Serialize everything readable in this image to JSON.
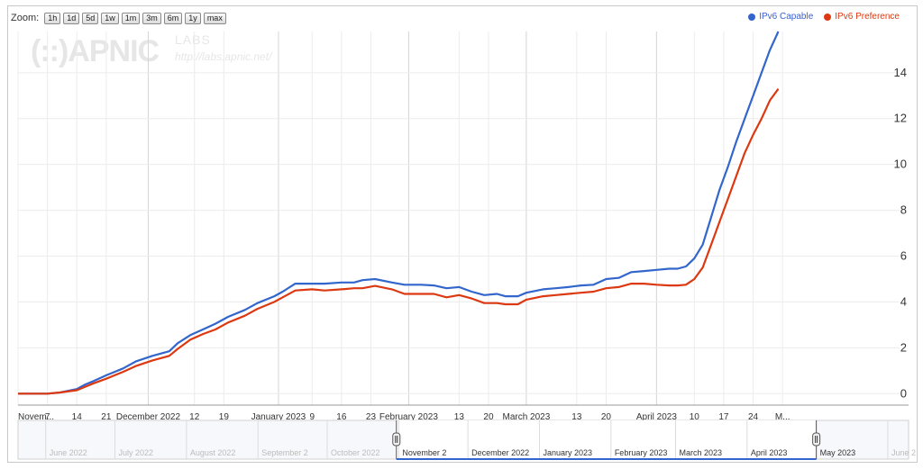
{
  "zoom": {
    "label": "Zoom:",
    "buttons": [
      "1h",
      "1d",
      "5d",
      "1w",
      "1m",
      "3m",
      "6m",
      "1y",
      "max"
    ]
  },
  "watermark": {
    "logo": "(::)APNIC",
    "labs": "LABS",
    "url": "http://labs.apnic.net/"
  },
  "colors": {
    "capable": "#3366cc",
    "preference": "#dc3912",
    "grid": "#ececec",
    "axis_text": "#333333"
  },
  "chart_data": {
    "type": "line",
    "title": "",
    "xlabel": "",
    "ylabel": "",
    "ylim": [
      -0.5,
      15.8
    ],
    "yticks": [
      0,
      2,
      4,
      6,
      8,
      10,
      12,
      14
    ],
    "ytick_labels": [
      "0",
      "2",
      "4",
      "6",
      "8",
      "10",
      "12",
      "14"
    ],
    "xlim": [
      "2022-10-31",
      "2023-05-31"
    ],
    "xticks": [
      {
        "date": "2022-10-31",
        "label": "Novem..."
      },
      {
        "date": "2022-11-07",
        "label": "7"
      },
      {
        "date": "2022-11-14",
        "label": "14"
      },
      {
        "date": "2022-11-21",
        "label": "21"
      },
      {
        "date": "2022-12-01",
        "label": "December 2022"
      },
      {
        "date": "2022-12-12",
        "label": "12"
      },
      {
        "date": "2022-12-19",
        "label": "19"
      },
      {
        "date": "2023-01-01",
        "label": "January 2023"
      },
      {
        "date": "2023-01-09",
        "label": "9"
      },
      {
        "date": "2023-01-16",
        "label": "16"
      },
      {
        "date": "2023-01-23",
        "label": "23"
      },
      {
        "date": "2023-02-01",
        "label": "February 2023"
      },
      {
        "date": "2023-02-13",
        "label": "13"
      },
      {
        "date": "2023-02-20",
        "label": "20"
      },
      {
        "date": "2023-03-01",
        "label": "March 2023"
      },
      {
        "date": "2023-03-13",
        "label": "13"
      },
      {
        "date": "2023-03-20",
        "label": "20"
      },
      {
        "date": "2023-04-01",
        "label": "April 2023"
      },
      {
        "date": "2023-04-10",
        "label": "10"
      },
      {
        "date": "2023-04-17",
        "label": "17"
      },
      {
        "date": "2023-04-24",
        "label": "24"
      },
      {
        "date": "2023-05-01",
        "label": "M..."
      }
    ],
    "legend_position": "top-right",
    "grid": true,
    "series": [
      {
        "name": "IPv6 Capable",
        "color": "#3366cc",
        "points": [
          [
            "2022-10-31",
            0
          ],
          [
            "2022-11-07",
            0
          ],
          [
            "2022-11-10",
            0.05
          ],
          [
            "2022-11-14",
            0.2
          ],
          [
            "2022-11-16",
            0.4
          ],
          [
            "2022-11-18",
            0.55
          ],
          [
            "2022-11-21",
            0.8
          ],
          [
            "2022-11-25",
            1.1
          ],
          [
            "2022-11-28",
            1.4
          ],
          [
            "2022-12-02",
            1.65
          ],
          [
            "2022-12-06",
            1.85
          ],
          [
            "2022-12-08",
            2.2
          ],
          [
            "2022-12-11",
            2.55
          ],
          [
            "2022-12-14",
            2.8
          ],
          [
            "2022-12-17",
            3.05
          ],
          [
            "2022-12-20",
            3.35
          ],
          [
            "2022-12-24",
            3.65
          ],
          [
            "2022-12-27",
            3.95
          ],
          [
            "2022-12-31",
            4.25
          ],
          [
            "2023-01-02",
            4.45
          ],
          [
            "2023-01-05",
            4.8
          ],
          [
            "2023-01-09",
            4.8
          ],
          [
            "2023-01-12",
            4.8
          ],
          [
            "2023-01-16",
            4.85
          ],
          [
            "2023-01-19",
            4.85
          ],
          [
            "2023-01-21",
            4.95
          ],
          [
            "2023-01-24",
            5.0
          ],
          [
            "2023-01-28",
            4.85
          ],
          [
            "2023-01-31",
            4.75
          ],
          [
            "2023-02-04",
            4.75
          ],
          [
            "2023-02-07",
            4.72
          ],
          [
            "2023-02-10",
            4.6
          ],
          [
            "2023-02-13",
            4.65
          ],
          [
            "2023-02-16",
            4.45
          ],
          [
            "2023-02-19",
            4.3
          ],
          [
            "2023-02-22",
            4.35
          ],
          [
            "2023-02-24",
            4.25
          ],
          [
            "2023-02-27",
            4.25
          ],
          [
            "2023-03-01",
            4.4
          ],
          [
            "2023-03-05",
            4.55
          ],
          [
            "2023-03-08",
            4.6
          ],
          [
            "2023-03-11",
            4.65
          ],
          [
            "2023-03-14",
            4.72
          ],
          [
            "2023-03-17",
            4.75
          ],
          [
            "2023-03-20",
            5.0
          ],
          [
            "2023-03-23",
            5.05
          ],
          [
            "2023-03-26",
            5.3
          ],
          [
            "2023-03-29",
            5.35
          ],
          [
            "2023-04-01",
            5.4
          ],
          [
            "2023-04-04",
            5.45
          ],
          [
            "2023-04-06",
            5.45
          ],
          [
            "2023-04-08",
            5.55
          ],
          [
            "2023-04-10",
            5.9
          ],
          [
            "2023-04-12",
            6.5
          ],
          [
            "2023-04-14",
            7.7
          ],
          [
            "2023-04-16",
            8.9
          ],
          [
            "2023-04-18",
            9.9
          ],
          [
            "2023-04-20",
            11.0
          ],
          [
            "2023-04-22",
            12.0
          ],
          [
            "2023-04-24",
            13.0
          ],
          [
            "2023-04-26",
            14.0
          ],
          [
            "2023-04-28",
            15.0
          ],
          [
            "2023-04-30",
            15.8
          ]
        ]
      },
      {
        "name": "IPv6 Preference",
        "color": "#dc3912",
        "points": [
          [
            "2022-10-31",
            0
          ],
          [
            "2022-11-07",
            0
          ],
          [
            "2022-11-10",
            0.05
          ],
          [
            "2022-11-14",
            0.15
          ],
          [
            "2022-11-16",
            0.3
          ],
          [
            "2022-11-18",
            0.45
          ],
          [
            "2022-11-21",
            0.65
          ],
          [
            "2022-11-25",
            0.95
          ],
          [
            "2022-11-28",
            1.2
          ],
          [
            "2022-12-02",
            1.45
          ],
          [
            "2022-12-06",
            1.65
          ],
          [
            "2022-12-08",
            1.95
          ],
          [
            "2022-12-11",
            2.35
          ],
          [
            "2022-12-14",
            2.6
          ],
          [
            "2022-12-17",
            2.8
          ],
          [
            "2022-12-20",
            3.1
          ],
          [
            "2022-12-24",
            3.4
          ],
          [
            "2022-12-27",
            3.7
          ],
          [
            "2022-12-31",
            4.0
          ],
          [
            "2023-01-02",
            4.2
          ],
          [
            "2023-01-05",
            4.5
          ],
          [
            "2023-01-09",
            4.55
          ],
          [
            "2023-01-12",
            4.5
          ],
          [
            "2023-01-16",
            4.55
          ],
          [
            "2023-01-19",
            4.6
          ],
          [
            "2023-01-21",
            4.6
          ],
          [
            "2023-01-24",
            4.7
          ],
          [
            "2023-01-28",
            4.55
          ],
          [
            "2023-01-31",
            4.35
          ],
          [
            "2023-02-04",
            4.35
          ],
          [
            "2023-02-07",
            4.35
          ],
          [
            "2023-02-10",
            4.2
          ],
          [
            "2023-02-13",
            4.3
          ],
          [
            "2023-02-16",
            4.15
          ],
          [
            "2023-02-19",
            3.95
          ],
          [
            "2023-02-22",
            3.95
          ],
          [
            "2023-02-24",
            3.9
          ],
          [
            "2023-02-27",
            3.9
          ],
          [
            "2023-03-01",
            4.1
          ],
          [
            "2023-03-05",
            4.25
          ],
          [
            "2023-03-08",
            4.3
          ],
          [
            "2023-03-11",
            4.35
          ],
          [
            "2023-03-14",
            4.4
          ],
          [
            "2023-03-17",
            4.45
          ],
          [
            "2023-03-20",
            4.6
          ],
          [
            "2023-03-23",
            4.65
          ],
          [
            "2023-03-26",
            4.8
          ],
          [
            "2023-03-29",
            4.8
          ],
          [
            "2023-04-01",
            4.75
          ],
          [
            "2023-04-04",
            4.72
          ],
          [
            "2023-04-06",
            4.72
          ],
          [
            "2023-04-08",
            4.75
          ],
          [
            "2023-04-10",
            5.0
          ],
          [
            "2023-04-12",
            5.5
          ],
          [
            "2023-04-14",
            6.5
          ],
          [
            "2023-04-16",
            7.5
          ],
          [
            "2023-04-18",
            8.5
          ],
          [
            "2023-04-20",
            9.5
          ],
          [
            "2023-04-22",
            10.5
          ],
          [
            "2023-04-24",
            11.3
          ],
          [
            "2023-04-26",
            12.0
          ],
          [
            "2023-04-28",
            12.8
          ],
          [
            "2023-04-30",
            13.3
          ]
        ]
      }
    ],
    "navigator": {
      "range": [
        "2022-05-20",
        "2023-06-10"
      ],
      "selected": [
        "2022-10-31",
        "2023-05-01"
      ],
      "labels": [
        {
          "date": "2022-06-01",
          "label": "June 2022"
        },
        {
          "date": "2022-07-01",
          "label": "July 2022"
        },
        {
          "date": "2022-08-01",
          "label": "August 2022"
        },
        {
          "date": "2022-09-01",
          "label": "September 2"
        },
        {
          "date": "2022-10-01",
          "label": "October 2022"
        },
        {
          "date": "2022-11-01",
          "label": "November 2"
        },
        {
          "date": "2022-12-01",
          "label": "December 2022"
        },
        {
          "date": "2023-01-01",
          "label": "January 2023"
        },
        {
          "date": "2023-02-01",
          "label": "February 2023"
        },
        {
          "date": "2023-03-01",
          "label": "March 2023"
        },
        {
          "date": "2023-04-01",
          "label": "April 2023"
        },
        {
          "date": "2023-05-01",
          "label": "May 2023"
        },
        {
          "date": "2023-06-01",
          "label": "June 2"
        }
      ]
    }
  }
}
